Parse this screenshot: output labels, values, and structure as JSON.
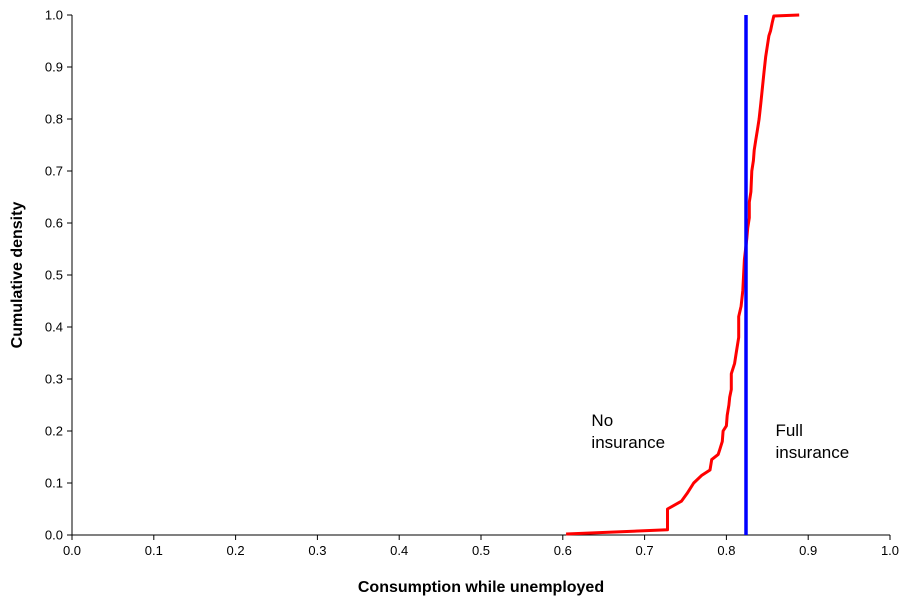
{
  "chart_data": {
    "type": "line",
    "xlabel": "Consumption while unemployed",
    "ylabel": "Cumulative density",
    "xlim": [
      0,
      1
    ],
    "ylim": [
      0,
      1
    ],
    "x_ticks": [
      "0.0",
      "0.1",
      "0.2",
      "0.3",
      "0.4",
      "0.5",
      "0.6",
      "0.7",
      "0.8",
      "0.9",
      "1.0"
    ],
    "y_ticks": [
      "0.0",
      "0.1",
      "0.2",
      "0.3",
      "0.4",
      "0.5",
      "0.6",
      "0.7",
      "0.8",
      "0.9",
      "1.0"
    ],
    "grid": false,
    "series": [
      {
        "name": "No insurance",
        "color": "#ff0000",
        "x": [
          0.604,
          0.728,
          0.728,
          0.745,
          0.752,
          0.76,
          0.77,
          0.78,
          0.782,
          0.79,
          0.792,
          0.795,
          0.796,
          0.8,
          0.801,
          0.803,
          0.804,
          0.806,
          0.806,
          0.81,
          0.812,
          0.815,
          0.815,
          0.818,
          0.82,
          0.821,
          0.822,
          0.825,
          0.826,
          0.828,
          0.828,
          0.83,
          0.831,
          0.833,
          0.834,
          0.836,
          0.838,
          0.84,
          0.842,
          0.844,
          0.846,
          0.848,
          0.85,
          0.852,
          0.854,
          0.856,
          0.858,
          0.889
        ],
        "y": [
          0.002,
          0.01,
          0.05,
          0.065,
          0.08,
          0.1,
          0.115,
          0.125,
          0.145,
          0.155,
          0.165,
          0.18,
          0.2,
          0.21,
          0.23,
          0.25,
          0.265,
          0.28,
          0.31,
          0.33,
          0.35,
          0.38,
          0.42,
          0.44,
          0.47,
          0.5,
          0.53,
          0.57,
          0.59,
          0.61,
          0.64,
          0.66,
          0.7,
          0.72,
          0.74,
          0.76,
          0.78,
          0.8,
          0.83,
          0.86,
          0.89,
          0.92,
          0.94,
          0.96,
          0.97,
          0.985,
          0.998,
          1.0
        ]
      },
      {
        "name": "Full insurance",
        "color": "#0000ff",
        "x": [
          0.824,
          0.824
        ],
        "y": [
          0,
          1
        ]
      }
    ],
    "annotations": [
      {
        "lines": [
          "No",
          "insurance"
        ],
        "x": 0.635,
        "y": 0.21
      },
      {
        "lines": [
          "Full",
          "insurance"
        ],
        "x": 0.86,
        "y": 0.19
      }
    ]
  }
}
